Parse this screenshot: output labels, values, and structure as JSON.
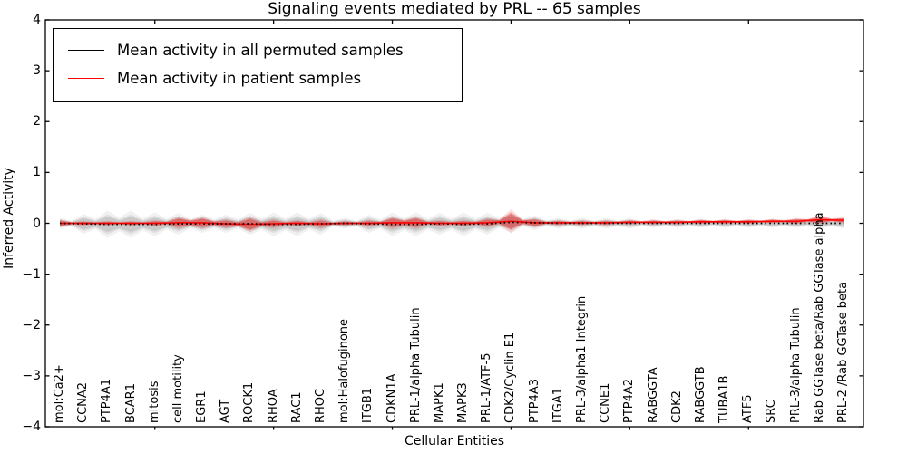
{
  "header": {
    "title": "Signaling events mediated by PRL -- 65 samples"
  },
  "axes": {
    "xlabel": "Cellular Entities",
    "ylabel": "Inferred Activity"
  },
  "legend": {
    "entries": [
      {
        "label": "Mean activity in all permuted samples",
        "color": "#000000"
      },
      {
        "label": "Mean activity in patient samples",
        "color": "#ff0000"
      }
    ]
  },
  "chart_data": {
    "type": "violin",
    "title": "Signaling events mediated by PRL -- 65 samples",
    "xlabel": "Cellular Entities",
    "ylabel": "Inferred Activity",
    "ylim": [
      -4,
      4
    ],
    "yticks": [
      -4,
      -3,
      -2,
      -1,
      0,
      1,
      2,
      3,
      4
    ],
    "xticks_data_positions": [
      5,
      10,
      15,
      20,
      25,
      30
    ],
    "grid": false,
    "legend_position": "upper left",
    "categories": [
      "mol:Ca2+",
      "CCNA2",
      "PTP4A1",
      "BCAR1",
      "mitosis",
      "cell motility",
      "EGR1",
      "AGT",
      "ROCK1",
      "RHOA",
      "RAC1",
      "RHOC",
      "mol:Halofuginone",
      "ITGB1",
      "CDKN1A",
      "PRL-1/alpha Tubulin",
      "MAPK1",
      "MAPK3",
      "PRL-1/ATF-5",
      "CDK2/Cyclin E1",
      "PTP4A3",
      "ITGA1",
      "PRL-3/alpha1 Integrin",
      "CCNE1",
      "PTP4A2",
      "RABGGTA",
      "CDK2",
      "RABGGTB",
      "TUBA1B",
      "ATF5",
      "SRC",
      "PRL-3/alpha Tubulin",
      "Rab GGTase beta/Rab GGTase alpha",
      "PRL-2 /Rab GGTase beta"
    ],
    "series": [
      {
        "name": "Mean activity in all permuted samples",
        "line_color": "#000000",
        "line_style": "dotted",
        "band_color": "#9a9a9a",
        "mean": [
          0,
          -0.01,
          -0.02,
          -0.02,
          -0.02,
          -0.01,
          -0.01,
          -0.01,
          -0.01,
          -0.02,
          -0.02,
          -0.01,
          0,
          -0.01,
          -0.02,
          -0.02,
          -0.01,
          -0.02,
          -0.01,
          0.02,
          0.01,
          0,
          0,
          0,
          0,
          0,
          0,
          0,
          0,
          0,
          0,
          0,
          0,
          0
        ],
        "spread": [
          0.06,
          0.11,
          0.15,
          0.15,
          0.13,
          0.12,
          0.1,
          0.1,
          0.12,
          0.13,
          0.13,
          0.12,
          0.06,
          0.1,
          0.13,
          0.13,
          0.12,
          0.13,
          0.12,
          0.11,
          0.08,
          0.06,
          0.06,
          0.06,
          0.06,
          0.05,
          0.05,
          0.05,
          0.05,
          0.05,
          0.05,
          0.05,
          0.06,
          0.06
        ]
      },
      {
        "name": "Mean activity in patient samples",
        "line_color": "#ff0000",
        "line_style": "solid",
        "band_color": "#e03030",
        "mean": [
          0,
          0,
          0,
          0,
          0,
          0.01,
          0.01,
          -0.01,
          -0.02,
          -0.01,
          0,
          -0.01,
          0,
          0,
          0.01,
          0.01,
          0,
          0,
          0.01,
          0.04,
          0.01,
          0.01,
          0.01,
          0.01,
          0.02,
          0.02,
          0.02,
          0.03,
          0.03,
          0.03,
          0.04,
          0.04,
          0.07,
          0.06
        ],
        "spread": [
          0.05,
          0.03,
          0.03,
          0.03,
          0.04,
          0.08,
          0.08,
          0.06,
          0.1,
          0.06,
          0.04,
          0.06,
          0.03,
          0.04,
          0.08,
          0.08,
          0.04,
          0.04,
          0.06,
          0.15,
          0.06,
          0.03,
          0.03,
          0.03,
          0.03,
          0.03,
          0.03,
          0.03,
          0.03,
          0.03,
          0.03,
          0.04,
          0.06,
          0.04
        ]
      }
    ]
  }
}
